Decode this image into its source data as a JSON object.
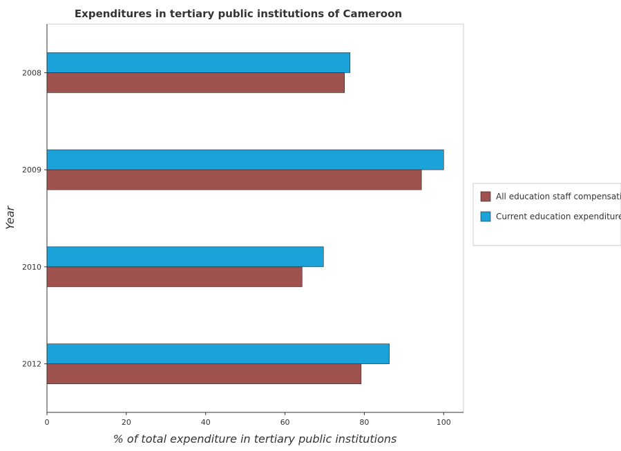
{
  "chart_data": {
    "type": "bar",
    "orientation": "horizontal",
    "title": "Expenditures in tertiary public institutions of Cameroon",
    "xlabel": "% of total expenditure in tertiary public institutions",
    "ylabel": "Year",
    "categories": [
      "2008",
      "2009",
      "2010",
      "2012"
    ],
    "series": [
      {
        "name": "All education staff compensation",
        "color": "#a0524f",
        "values": [
          75.0,
          94.4,
          64.3,
          79.2
        ]
      },
      {
        "name": "Current education expenditure",
        "color": "#1ba3d9",
        "values": [
          76.4,
          100.0,
          69.7,
          86.3
        ]
      }
    ],
    "xlim": [
      0,
      105
    ],
    "xticks": [
      "0",
      "20",
      "40",
      "60",
      "80",
      "100"
    ],
    "grid": false,
    "legend_position": "right"
  }
}
